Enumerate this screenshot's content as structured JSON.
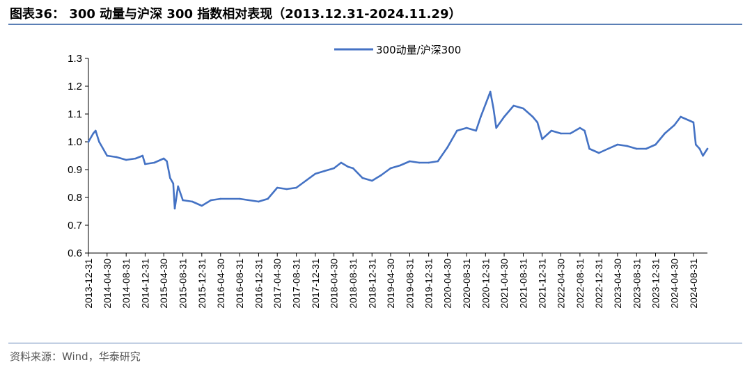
{
  "figure": {
    "title": "图表36：  300 动量与沪深 300 指数相对表现（2013.12.31-2024.11.29）",
    "source": "资料来源：Wind，华泰研究"
  },
  "chart_data": {
    "type": "line",
    "title": "",
    "xlabel": "",
    "ylabel": "",
    "ylim": [
      0.6,
      1.3
    ],
    "yticks": [
      "0.6",
      "0.7",
      "0.8",
      "0.9",
      "1.0",
      "1.1",
      "1.2",
      "1.3"
    ],
    "xlim": [
      "2013-12-31",
      "2024-11-29"
    ],
    "xticks": [
      "2013-12-31",
      "2014-04-30",
      "2014-08-31",
      "2014-12-31",
      "2015-04-30",
      "2015-08-31",
      "2015-12-31",
      "2016-04-30",
      "2016-08-31",
      "2016-12-31",
      "2017-04-30",
      "2017-08-31",
      "2017-12-31",
      "2018-04-30",
      "2018-08-31",
      "2018-12-31",
      "2019-04-30",
      "2019-08-31",
      "2019-12-31",
      "2020-04-30",
      "2020-08-31",
      "2020-12-31",
      "2021-04-30",
      "2021-08-31",
      "2021-12-31",
      "2022-04-30",
      "2022-08-31",
      "2022-12-31",
      "2023-04-30",
      "2023-08-31",
      "2023-12-31",
      "2024-04-30",
      "2024-08-31"
    ],
    "grid": false,
    "legend": "top-center",
    "colors": {
      "series": "#4472c4"
    },
    "series": [
      {
        "name": "300动量/沪深300",
        "points": [
          [
            "2013-12-31",
            1.0
          ],
          [
            "2014-01-31",
            1.03
          ],
          [
            "2014-02-15",
            1.04
          ],
          [
            "2014-03-10",
            1.0
          ],
          [
            "2014-04-30",
            0.95
          ],
          [
            "2014-06-30",
            0.945
          ],
          [
            "2014-08-31",
            0.935
          ],
          [
            "2014-10-31",
            0.94
          ],
          [
            "2014-12-15",
            0.95
          ],
          [
            "2014-12-31",
            0.92
          ],
          [
            "2015-02-28",
            0.925
          ],
          [
            "2015-04-30",
            0.94
          ],
          [
            "2015-05-20",
            0.93
          ],
          [
            "2015-06-10",
            0.87
          ],
          [
            "2015-06-30",
            0.85
          ],
          [
            "2015-07-10",
            0.76
          ],
          [
            "2015-07-31",
            0.84
          ],
          [
            "2015-08-31",
            0.79
          ],
          [
            "2015-10-31",
            0.785
          ],
          [
            "2015-12-31",
            0.77
          ],
          [
            "2016-02-28",
            0.79
          ],
          [
            "2016-04-30",
            0.795
          ],
          [
            "2016-08-31",
            0.795
          ],
          [
            "2016-12-31",
            0.785
          ],
          [
            "2017-02-28",
            0.795
          ],
          [
            "2017-04-30",
            0.835
          ],
          [
            "2017-06-30",
            0.83
          ],
          [
            "2017-08-31",
            0.835
          ],
          [
            "2017-10-31",
            0.86
          ],
          [
            "2017-12-31",
            0.885
          ],
          [
            "2018-02-28",
            0.895
          ],
          [
            "2018-04-30",
            0.905
          ],
          [
            "2018-06-15",
            0.925
          ],
          [
            "2018-07-31",
            0.91
          ],
          [
            "2018-08-31",
            0.905
          ],
          [
            "2018-10-31",
            0.87
          ],
          [
            "2018-12-31",
            0.86
          ],
          [
            "2019-02-28",
            0.88
          ],
          [
            "2019-04-30",
            0.905
          ],
          [
            "2019-06-30",
            0.915
          ],
          [
            "2019-08-31",
            0.93
          ],
          [
            "2019-10-31",
            0.925
          ],
          [
            "2019-12-31",
            0.925
          ],
          [
            "2020-02-28",
            0.93
          ],
          [
            "2020-04-30",
            0.98
          ],
          [
            "2020-06-30",
            1.04
          ],
          [
            "2020-08-31",
            1.05
          ],
          [
            "2020-10-31",
            1.04
          ],
          [
            "2020-11-30",
            1.09
          ],
          [
            "2020-12-31",
            1.135
          ],
          [
            "2021-01-31",
            1.18
          ],
          [
            "2021-02-20",
            1.12
          ],
          [
            "2021-03-10",
            1.05
          ],
          [
            "2021-04-30",
            1.09
          ],
          [
            "2021-06-30",
            1.13
          ],
          [
            "2021-08-31",
            1.12
          ],
          [
            "2021-10-31",
            1.09
          ],
          [
            "2021-11-30",
            1.07
          ],
          [
            "2021-12-31",
            1.01
          ],
          [
            "2022-02-28",
            1.04
          ],
          [
            "2022-04-30",
            1.03
          ],
          [
            "2022-06-30",
            1.03
          ],
          [
            "2022-08-31",
            1.05
          ],
          [
            "2022-09-30",
            1.04
          ],
          [
            "2022-10-31",
            0.975
          ],
          [
            "2022-12-31",
            0.96
          ],
          [
            "2023-02-28",
            0.975
          ],
          [
            "2023-04-30",
            0.99
          ],
          [
            "2023-06-30",
            0.985
          ],
          [
            "2023-08-31",
            0.975
          ],
          [
            "2023-10-31",
            0.975
          ],
          [
            "2023-12-31",
            0.99
          ],
          [
            "2024-02-28",
            1.03
          ],
          [
            "2024-04-30",
            1.06
          ],
          [
            "2024-06-10",
            1.09
          ],
          [
            "2024-08-31",
            1.07
          ],
          [
            "2024-09-15",
            0.99
          ],
          [
            "2024-10-10",
            0.975
          ],
          [
            "2024-10-31",
            0.95
          ],
          [
            "2024-11-29",
            0.975
          ]
        ]
      }
    ]
  }
}
